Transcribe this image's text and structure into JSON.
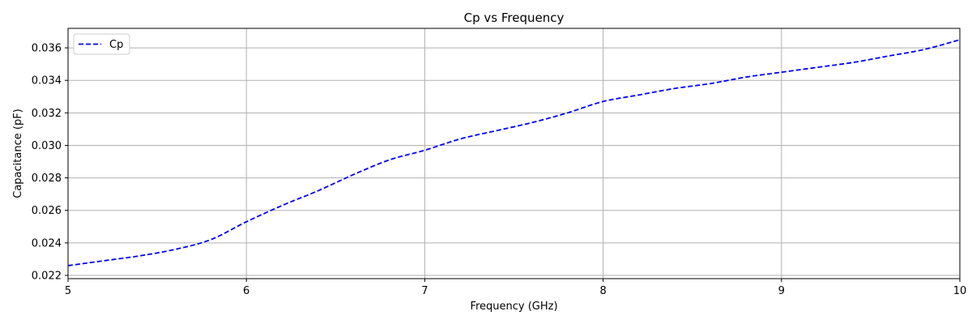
{
  "chart_data": {
    "type": "line",
    "title": "Cp vs Frequency",
    "xlabel": "Frequency (GHz)",
    "ylabel": "Capacitance (pF)",
    "xlim": [
      5,
      10
    ],
    "ylim": [
      0.0218,
      0.0372
    ],
    "xticks": [
      5,
      6,
      7,
      8,
      9,
      10
    ],
    "xtick_labels": [
      "5",
      "6",
      "7",
      "8",
      "9",
      "10"
    ],
    "yticks": [
      0.022,
      0.024,
      0.026,
      0.028,
      0.03,
      0.032,
      0.034,
      0.036
    ],
    "ytick_labels": [
      "0.022",
      "0.024",
      "0.026",
      "0.028",
      "0.030",
      "0.032",
      "0.034",
      "0.036"
    ],
    "grid": true,
    "legend_position": "upper-left",
    "series": [
      {
        "name": "Cp",
        "color": "#0000ff",
        "line_style": "dashed",
        "x": [
          5.0,
          5.2,
          5.4,
          5.6,
          5.8,
          6.0,
          6.2,
          6.4,
          6.6,
          6.8,
          7.0,
          7.2,
          7.4,
          7.6,
          7.8,
          8.0,
          8.2,
          8.4,
          8.6,
          8.8,
          9.0,
          9.2,
          9.4,
          9.6,
          9.8,
          10.0
        ],
        "y": [
          0.0226,
          0.0229,
          0.0232,
          0.0236,
          0.0242,
          0.0253,
          0.0263,
          0.0272,
          0.0282,
          0.0291,
          0.0297,
          0.0304,
          0.0309,
          0.0314,
          0.032,
          0.0327,
          0.0331,
          0.0335,
          0.0338,
          0.0342,
          0.0345,
          0.0348,
          0.0351,
          0.0355,
          0.0359,
          0.0365
        ]
      }
    ]
  }
}
